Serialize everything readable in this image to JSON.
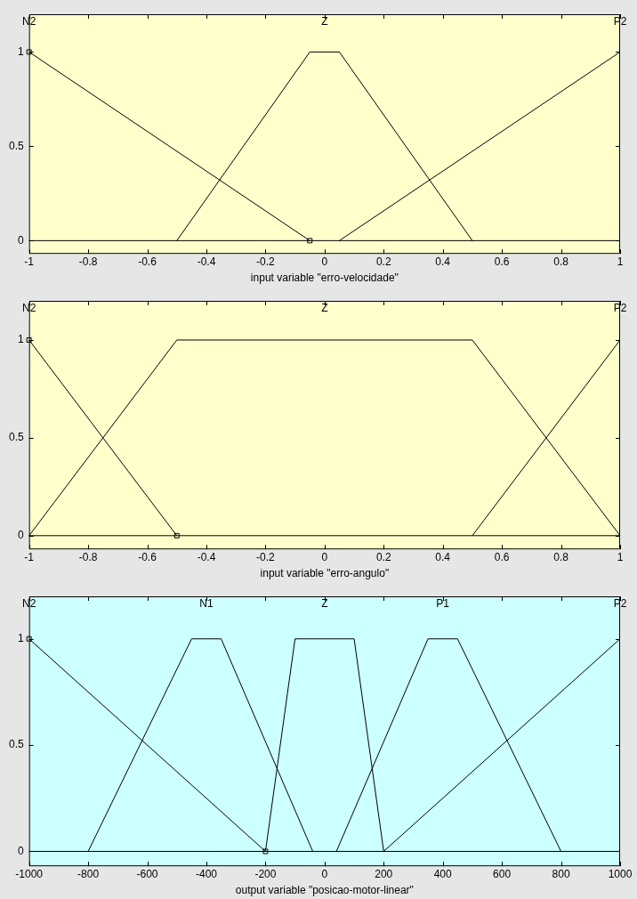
{
  "chart_data": [
    {
      "type": "line",
      "xlabel": "input variable \"erro-velocidade\"",
      "xlim": [
        -1,
        1
      ],
      "ylim": [
        -0.07,
        1.2
      ],
      "xticks": [
        -1,
        -0.8,
        -0.6,
        -0.4,
        -0.2,
        0,
        0.2,
        0.4,
        0.6,
        0.8,
        1
      ],
      "yticks": [
        0,
        0.5,
        1
      ],
      "grid": false,
      "legend": "top",
      "marker": "none",
      "line_style": "solid",
      "ref_lines": [
        {
          "axis": "y",
          "value": 0,
          "color": "#000000"
        }
      ],
      "series": [
        {
          "name": "N2",
          "color": "#000000",
          "marker": "square",
          "x": [
            -1,
            -0.05
          ],
          "values": [
            1,
            0
          ]
        },
        {
          "name": "Z",
          "color": "#000000",
          "x": [
            -0.5,
            -0.05,
            0.05,
            0.5
          ],
          "values": [
            0,
            1,
            1,
            0
          ]
        },
        {
          "name": "P2",
          "color": "#000000",
          "x": [
            0.05,
            1
          ],
          "values": [
            0,
            1
          ]
        }
      ]
    },
    {
      "type": "line",
      "xlabel": "input variable \"erro-angulo\"",
      "xlim": [
        -1,
        1
      ],
      "ylim": [
        -0.07,
        1.2
      ],
      "xticks": [
        -1,
        -0.8,
        -0.6,
        -0.4,
        -0.2,
        0,
        0.2,
        0.4,
        0.6,
        0.8,
        1
      ],
      "yticks": [
        0,
        0.5,
        1
      ],
      "grid": false,
      "legend": "top",
      "marker": "none",
      "line_style": "solid",
      "ref_lines": [
        {
          "axis": "y",
          "value": 0,
          "color": "#000000"
        }
      ],
      "series": [
        {
          "name": "N2",
          "color": "#000000",
          "marker": "square",
          "x": [
            -1,
            -0.5
          ],
          "values": [
            1,
            0
          ]
        },
        {
          "name": "Z",
          "color": "#000000",
          "x": [
            -1,
            -0.5,
            0.5,
            1
          ],
          "values": [
            0,
            1,
            1,
            0
          ]
        },
        {
          "name": "P2",
          "color": "#000000",
          "x": [
            0.5,
            1
          ],
          "values": [
            0,
            1
          ]
        }
      ]
    },
    {
      "type": "line",
      "xlabel": "output variable \"posicao-motor-linear\"",
      "xlim": [
        -1000,
        1000
      ],
      "ylim": [
        -0.07,
        1.2
      ],
      "xticks": [
        -1000,
        -800,
        -600,
        -400,
        -200,
        0,
        200,
        400,
        600,
        800,
        1000
      ],
      "yticks": [
        0,
        0.5,
        1
      ],
      "grid": false,
      "legend": "top",
      "marker": "none",
      "line_style": "solid",
      "ref_lines": [
        {
          "axis": "y",
          "value": 0,
          "color": "#000000"
        }
      ],
      "series": [
        {
          "name": "N2",
          "color": "#000000",
          "marker": "square",
          "x": [
            -1000,
            -200
          ],
          "values": [
            1,
            0
          ]
        },
        {
          "name": "N1",
          "color": "#000000",
          "x": [
            -800,
            -450,
            -350,
            -40
          ],
          "values": [
            0,
            1,
            1,
            0
          ]
        },
        {
          "name": "Z",
          "color": "#000000",
          "x": [
            -200,
            -100,
            100,
            200
          ],
          "values": [
            0,
            1,
            1,
            0
          ]
        },
        {
          "name": "P1",
          "color": "#000000",
          "x": [
            40,
            350,
            450,
            800
          ],
          "values": [
            0,
            1,
            1,
            0
          ]
        },
        {
          "name": "P2",
          "color": "#000000",
          "x": [
            200,
            1000
          ],
          "values": [
            0,
            1
          ]
        }
      ]
    }
  ]
}
